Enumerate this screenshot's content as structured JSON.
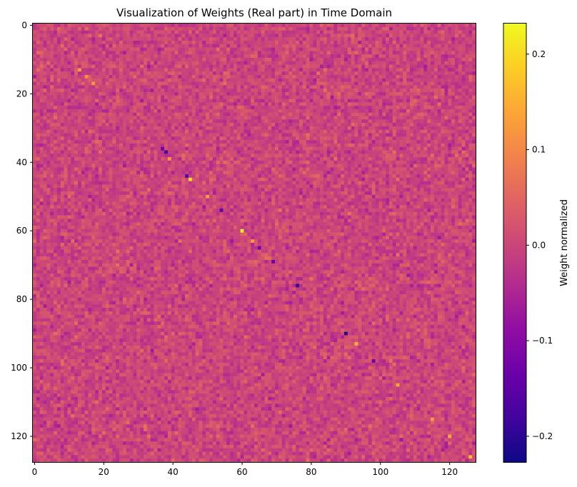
{
  "chart_data": {
    "type": "heatmap",
    "title": "Visualization of Weights (Real part) in Time Domain",
    "xlabel": "",
    "ylabel": "",
    "rows": 128,
    "cols": 128,
    "xlim": [
      0,
      127
    ],
    "ylim": [
      127,
      0
    ],
    "x_ticks": [
      0,
      20,
      40,
      60,
      80,
      100,
      120
    ],
    "y_ticks": [
      0,
      20,
      40,
      60,
      80,
      100,
      120
    ],
    "colormap": "plasma",
    "value_range": [
      -0.227,
      0.232
    ],
    "background_noise": {
      "mean": 0.0,
      "spread": 0.045
    },
    "notable_cells": [
      {
        "row": 13,
        "col": 13,
        "value": 0.13
      },
      {
        "row": 15,
        "col": 15,
        "value": 0.11
      },
      {
        "row": 17,
        "col": 17,
        "value": 0.12
      },
      {
        "row": 36,
        "col": 37,
        "value": -0.14
      },
      {
        "row": 37,
        "col": 38,
        "value": -0.17
      },
      {
        "row": 39,
        "col": 39,
        "value": 0.12
      },
      {
        "row": 44,
        "col": 44,
        "value": -0.16
      },
      {
        "row": 45,
        "col": 45,
        "value": 0.2
      },
      {
        "row": 50,
        "col": 50,
        "value": 0.13
      },
      {
        "row": 54,
        "col": 54,
        "value": -0.15
      },
      {
        "row": 60,
        "col": 60,
        "value": 0.23
      },
      {
        "row": 63,
        "col": 63,
        "value": 0.12
      },
      {
        "row": 65,
        "col": 65,
        "value": -0.13
      },
      {
        "row": 69,
        "col": 69,
        "value": -0.14
      },
      {
        "row": 76,
        "col": 76,
        "value": -0.2
      },
      {
        "row": 90,
        "col": 90,
        "value": -0.21
      },
      {
        "row": 93,
        "col": 93,
        "value": 0.15
      },
      {
        "row": 98,
        "col": 98,
        "value": -0.14
      },
      {
        "row": 105,
        "col": 105,
        "value": 0.14
      },
      {
        "row": 115,
        "col": 115,
        "value": 0.13
      },
      {
        "row": 120,
        "col": 120,
        "value": 0.15
      },
      {
        "row": 126,
        "col": 126,
        "value": 0.17
      }
    ],
    "colorbar": {
      "label": "Weight normalized",
      "ticks": [
        -0.2,
        -0.1,
        0.0,
        0.1,
        0.2
      ],
      "tick_labels": [
        "−0.2",
        "−0.1",
        "0.0",
        "0.1",
        "0.2"
      ]
    }
  }
}
